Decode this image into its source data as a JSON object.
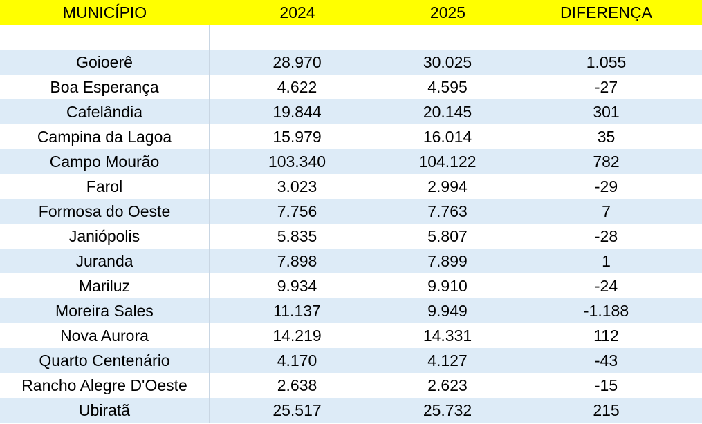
{
  "table": {
    "headers": [
      "MUNICÍPIO",
      "2024",
      "2025",
      "DIFERENÇA"
    ],
    "rows": [
      [
        "Goioerê",
        "28.970",
        "30.025",
        "1.055"
      ],
      [
        "Boa Esperança",
        "4.622",
        "4.595",
        "-27"
      ],
      [
        "Cafelândia",
        "19.844",
        "20.145",
        "301"
      ],
      [
        "Campina da Lagoa",
        "15.979",
        "16.014",
        "35"
      ],
      [
        "Campo Mourão",
        "103.340",
        "104.122",
        "782"
      ],
      [
        "Farol",
        "3.023",
        "2.994",
        "-29"
      ],
      [
        "Formosa do Oeste",
        "7.756",
        "7.763",
        "7"
      ],
      [
        "Janiópolis",
        "5.835",
        "5.807",
        "-28"
      ],
      [
        "Juranda",
        "7.898",
        "7.899",
        "1"
      ],
      [
        "Mariluz",
        "9.934",
        "9.910",
        "-24"
      ],
      [
        "Moreira Sales",
        "11.137",
        "9.949",
        "-1.188"
      ],
      [
        "Nova Aurora",
        "14.219",
        "14.331",
        "112"
      ],
      [
        "Quarto Centenário",
        "4.170",
        "4.127",
        "-43"
      ],
      [
        "Rancho Alegre D'Oeste",
        "2.638",
        "2.623",
        "-15"
      ],
      [
        "Ubiratã",
        "25.517",
        "25.732",
        "215"
      ]
    ]
  },
  "colors": {
    "header_bg": "#ffff00",
    "band_bg": "#ddebf7",
    "plain_bg": "#ffffff"
  }
}
